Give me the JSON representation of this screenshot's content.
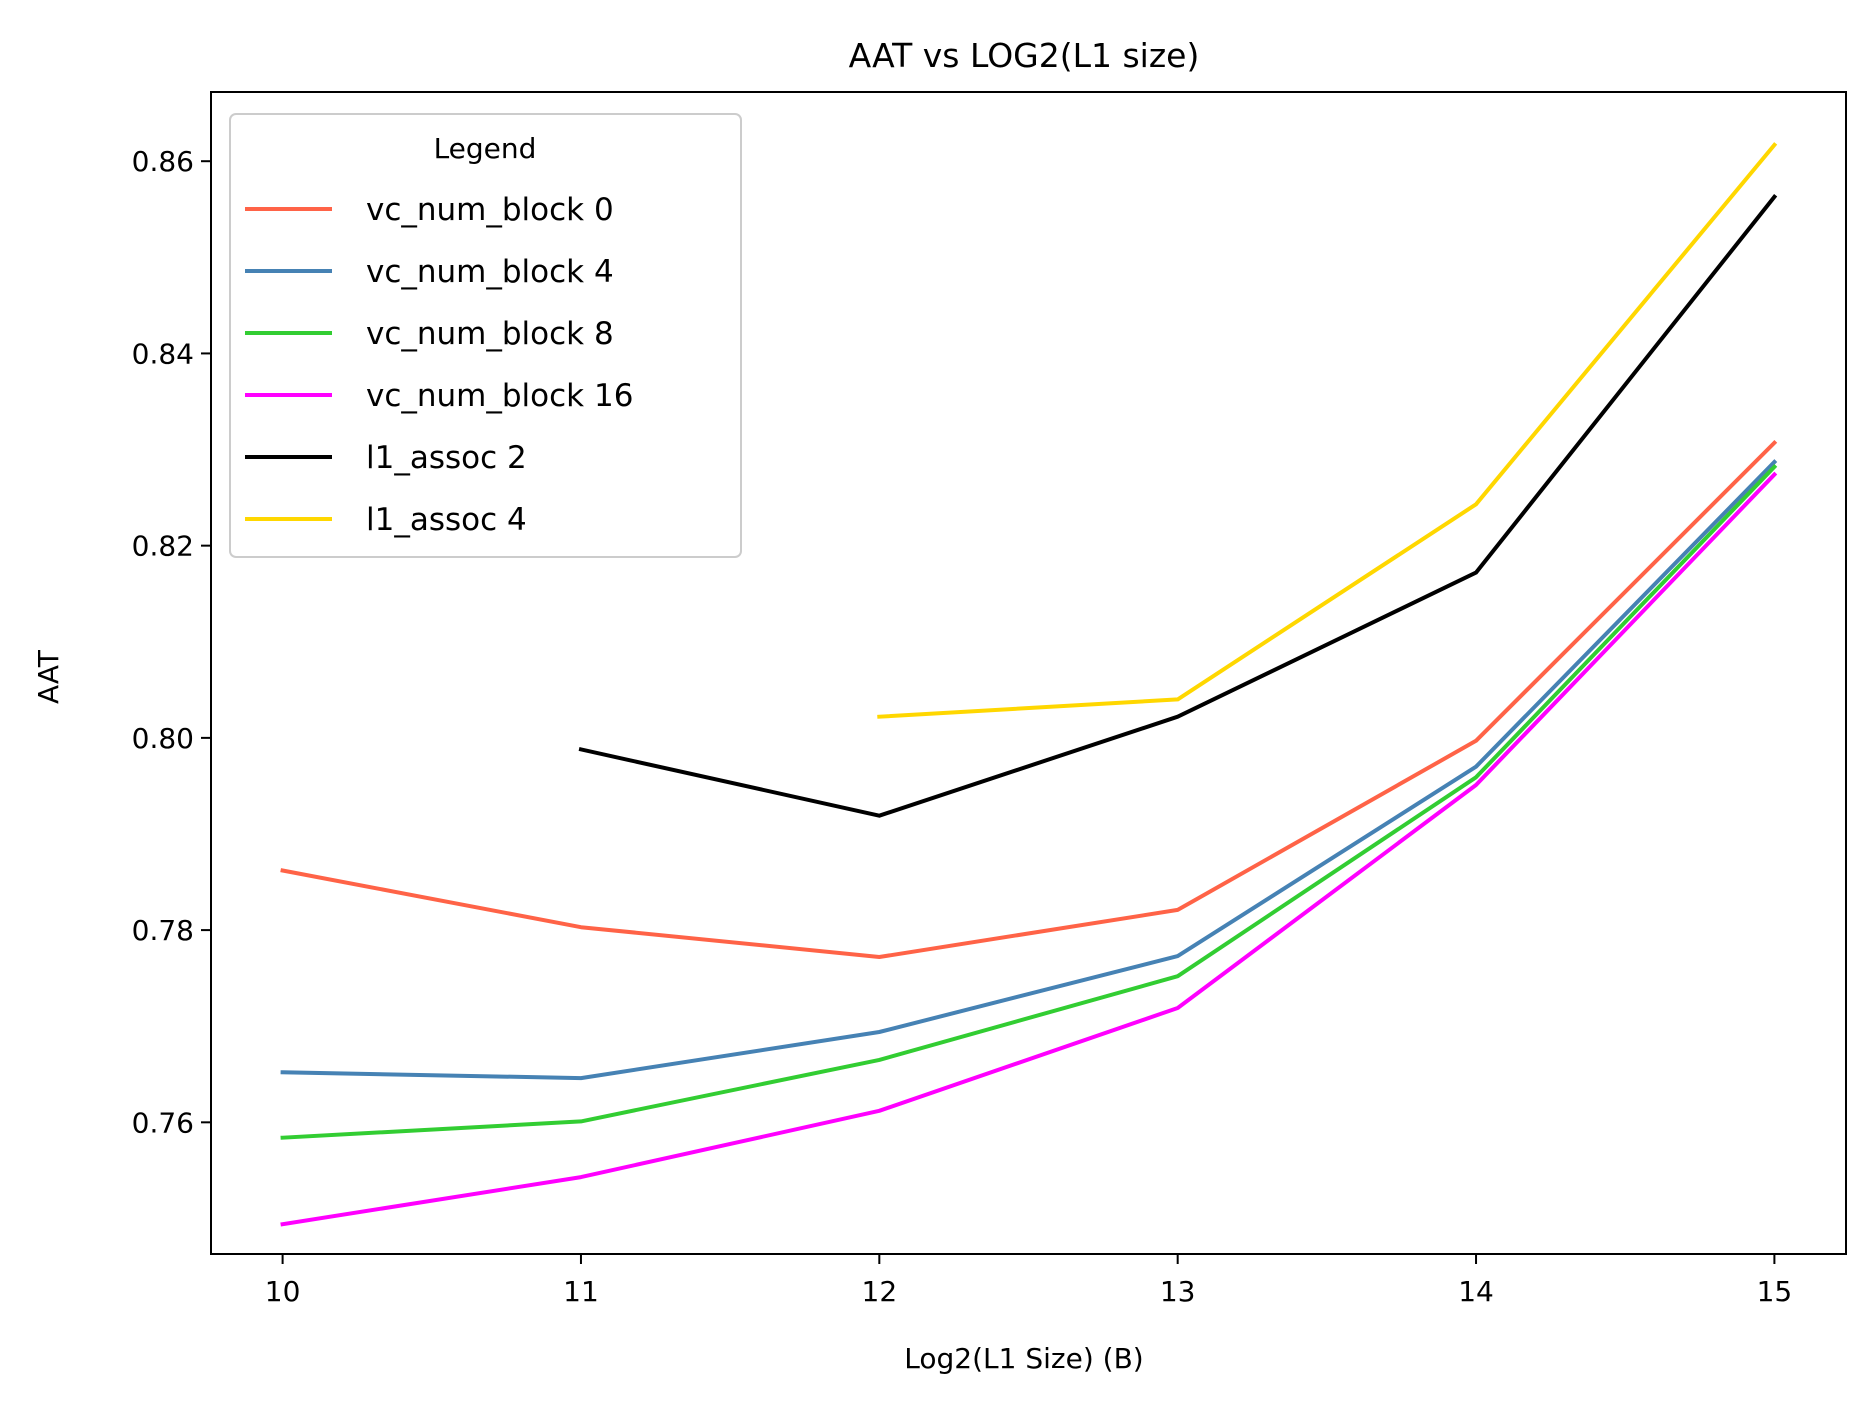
{
  "chart_data": {
    "type": "line",
    "title": "AAT vs LOG2(L1 size)",
    "xlabel": "Log2(L1 Size) (B)",
    "ylabel": "AAT",
    "xlim": [
      9.76,
      15.24
    ],
    "ylim": [
      0.7463,
      0.8672
    ],
    "xticks": [
      10,
      11,
      12,
      13,
      14,
      15
    ],
    "yticks": [
      0.76,
      0.78,
      0.8,
      0.82,
      0.84,
      0.86
    ],
    "ytick_labels": [
      "0.76",
      "0.78",
      "0.80",
      "0.82",
      "0.84",
      "0.86"
    ],
    "grid": false,
    "legend": {
      "title": "Legend",
      "placement": "upper-left"
    },
    "series": [
      {
        "name": "vc_num_block 0",
        "color": "#ff6347",
        "x": [
          10,
          11,
          12,
          13,
          14,
          15
        ],
        "y": [
          0.7862,
          0.7803,
          0.7772,
          0.7821,
          0.7997,
          0.8307
        ]
      },
      {
        "name": "vc_num_block 4",
        "color": "#4682b4",
        "x": [
          10,
          11,
          12,
          13,
          14,
          15
        ],
        "y": [
          0.7652,
          0.7646,
          0.7694,
          0.7773,
          0.797,
          0.8287
        ]
      },
      {
        "name": "vc_num_block 8",
        "color": "#32cd32",
        "x": [
          10,
          11,
          12,
          13,
          14,
          15
        ],
        "y": [
          0.7584,
          0.7601,
          0.7665,
          0.7752,
          0.7959,
          0.8282
        ]
      },
      {
        "name": "vc_num_block 16",
        "color": "#ff00ff",
        "x": [
          10,
          11,
          12,
          13,
          14,
          15
        ],
        "y": [
          0.7494,
          0.7543,
          0.7612,
          0.7719,
          0.7951,
          0.8274
        ]
      },
      {
        "name": "l1_assoc 2",
        "color": "#000000",
        "x": [
          11,
          12,
          13,
          14,
          15
        ],
        "y": [
          0.7988,
          0.7919,
          0.8022,
          0.8172,
          0.8563
        ]
      },
      {
        "name": "l1_assoc 4",
        "color": "#ffd700",
        "x": [
          12,
          13,
          14,
          15
        ],
        "y": [
          0.8022,
          0.804,
          0.8243,
          0.8617
        ]
      }
    ]
  }
}
